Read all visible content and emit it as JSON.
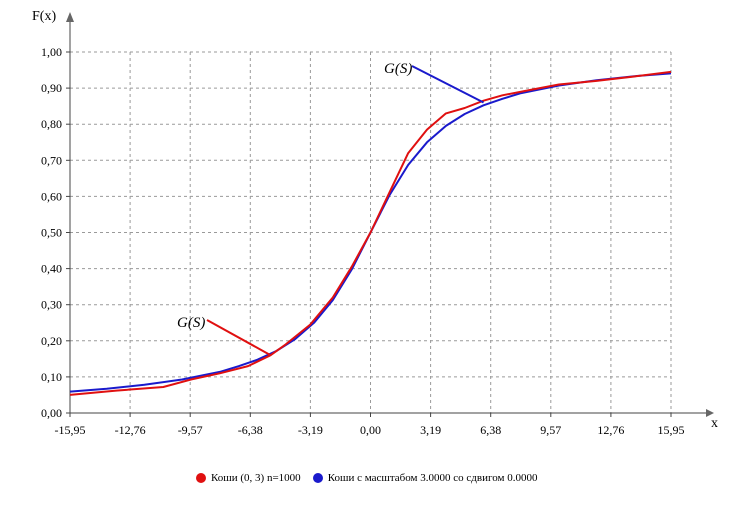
{
  "chart_data": {
    "type": "line",
    "xlabel": "x",
    "ylabel": "F(x)",
    "xlim": [
      -15.95,
      15.95
    ],
    "ylim": [
      0,
      1
    ],
    "x_ticks": [
      "-15,95",
      "-12,76",
      "-9,57",
      "-6,38",
      "-3,19",
      "0,00",
      "3,19",
      "6,38",
      "9,57",
      "12,76",
      "15,95"
    ],
    "y_ticks": [
      "0,00",
      "0,10",
      "0,20",
      "0,30",
      "0,40",
      "0,50",
      "0,60",
      "0,70",
      "0,80",
      "0,90",
      "1,00"
    ],
    "grid": true,
    "legend_position": "bottom",
    "series": [
      {
        "name": "Коши (0, 3) n=1000",
        "color": "#e01010",
        "x": [
          -15.95,
          -13.5,
          -11.0,
          -9.5,
          -8.0,
          -6.5,
          -5.3,
          -4.5,
          -3.2,
          -2.0,
          -1.0,
          0.0,
          1.0,
          2.0,
          3.0,
          4.0,
          5.0,
          6.0,
          7.0,
          8.5,
          10.0,
          12.0,
          14.0,
          15.95
        ],
        "y": [
          0.05,
          0.062,
          0.072,
          0.093,
          0.11,
          0.13,
          0.16,
          0.19,
          0.245,
          0.32,
          0.405,
          0.5,
          0.61,
          0.72,
          0.785,
          0.83,
          0.845,
          0.865,
          0.88,
          0.895,
          0.91,
          0.92,
          0.932,
          0.945
        ]
      },
      {
        "name": "Коши с масштабом 3.0000 со сдвигом 0.0000",
        "color": "#1a1acc",
        "x": [
          -15.95,
          -14.0,
          -12.0,
          -10.0,
          -8.0,
          -7.0,
          -6.0,
          -5.0,
          -4.0,
          -3.0,
          -2.0,
          -1.0,
          0.0,
          1.0,
          2.0,
          3.0,
          4.0,
          5.0,
          6.0,
          7.0,
          8.0,
          10.0,
          12.0,
          14.0,
          15.95
        ],
        "y": [
          0.0593,
          0.0669,
          0.078,
          0.0928,
          0.1138,
          0.1296,
          0.1476,
          0.1718,
          0.2048,
          0.25,
          0.3128,
          0.3976,
          0.5,
          0.6024,
          0.6872,
          0.75,
          0.7952,
          0.8282,
          0.8524,
          0.8704,
          0.8862,
          0.9072,
          0.922,
          0.9331,
          0.9407
        ]
      }
    ],
    "annotations": [
      {
        "text": "G(S)",
        "color": "#e01010",
        "point": [
          -5.3,
          0.16
        ]
      },
      {
        "text": "G(S)",
        "color": "#1a1acc",
        "point": [
          6.0,
          0.86
        ]
      }
    ]
  }
}
